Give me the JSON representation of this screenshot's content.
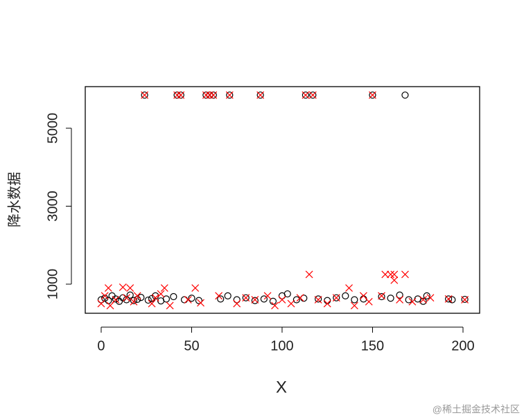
{
  "chart_data": {
    "type": "scatter",
    "x_label": "X",
    "y_label": "降水数据",
    "xlim": [
      -8.8,
      209.2
    ],
    "ylim": [
      253,
      6067
    ],
    "xticks": [
      0,
      50,
      100,
      150,
      200
    ],
    "yticks": [
      1000,
      3000,
      5000
    ],
    "series": [
      {
        "name": "circles",
        "color": "#000000",
        "marker": "circle",
        "x": [
          0,
          2,
          4,
          6,
          8,
          10,
          12,
          14,
          16,
          18,
          20,
          22,
          24,
          26,
          28,
          30,
          33,
          36,
          40,
          42,
          44,
          46,
          50,
          54,
          58,
          60,
          62,
          66,
          70,
          71,
          75,
          80,
          85,
          88,
          90,
          95,
          100,
          103,
          108,
          112,
          113,
          117,
          120,
          125,
          130,
          135,
          140,
          145,
          150,
          155,
          160,
          165,
          168,
          170,
          175,
          178,
          180,
          192,
          194,
          201
        ],
        "values": [
          600,
          640,
          580,
          700,
          620,
          560,
          650,
          600,
          720,
          580,
          610,
          660,
          5850,
          590,
          630,
          700,
          570,
          620,
          680,
          5850,
          5850,
          600,
          640,
          580,
          5850,
          5850,
          5850,
          620,
          700,
          5850,
          600,
          650,
          580,
          5850,
          620,
          560,
          700,
          750,
          600,
          640,
          5850,
          5850,
          620,
          580,
          650,
          700,
          600,
          620,
          5850,
          680,
          640,
          720,
          5850,
          600,
          620,
          560,
          700,
          620,
          600,
          610
        ]
      },
      {
        "name": "crosses",
        "color": "#ff0000",
        "marker": "cross",
        "x": [
          0,
          2,
          4,
          5,
          8,
          12,
          14,
          16,
          18,
          20,
          24,
          28,
          30,
          33,
          35,
          38,
          42,
          44,
          48,
          52,
          55,
          58,
          60,
          62,
          65,
          71,
          75,
          80,
          85,
          88,
          92,
          96,
          100,
          105,
          110,
          113,
          115,
          117,
          120,
          125,
          130,
          137,
          140,
          145,
          148,
          150,
          155,
          157,
          160,
          162,
          162,
          165,
          168,
          172,
          178,
          182,
          192,
          201
        ],
        "values": [
          500,
          700,
          900,
          450,
          600,
          920,
          650,
          900,
          550,
          700,
          5850,
          500,
          650,
          750,
          900,
          450,
          5850,
          5850,
          600,
          900,
          520,
          5850,
          5850,
          5850,
          700,
          5850,
          500,
          650,
          600,
          5850,
          700,
          450,
          600,
          500,
          650,
          5850,
          1250,
          5850,
          600,
          500,
          650,
          900,
          450,
          700,
          550,
          5850,
          700,
          1250,
          1250,
          1250,
          1100,
          600,
          1250,
          550,
          600,
          650,
          620,
          600
        ]
      }
    ],
    "watermark": "@稀土掘金技术社区"
  }
}
